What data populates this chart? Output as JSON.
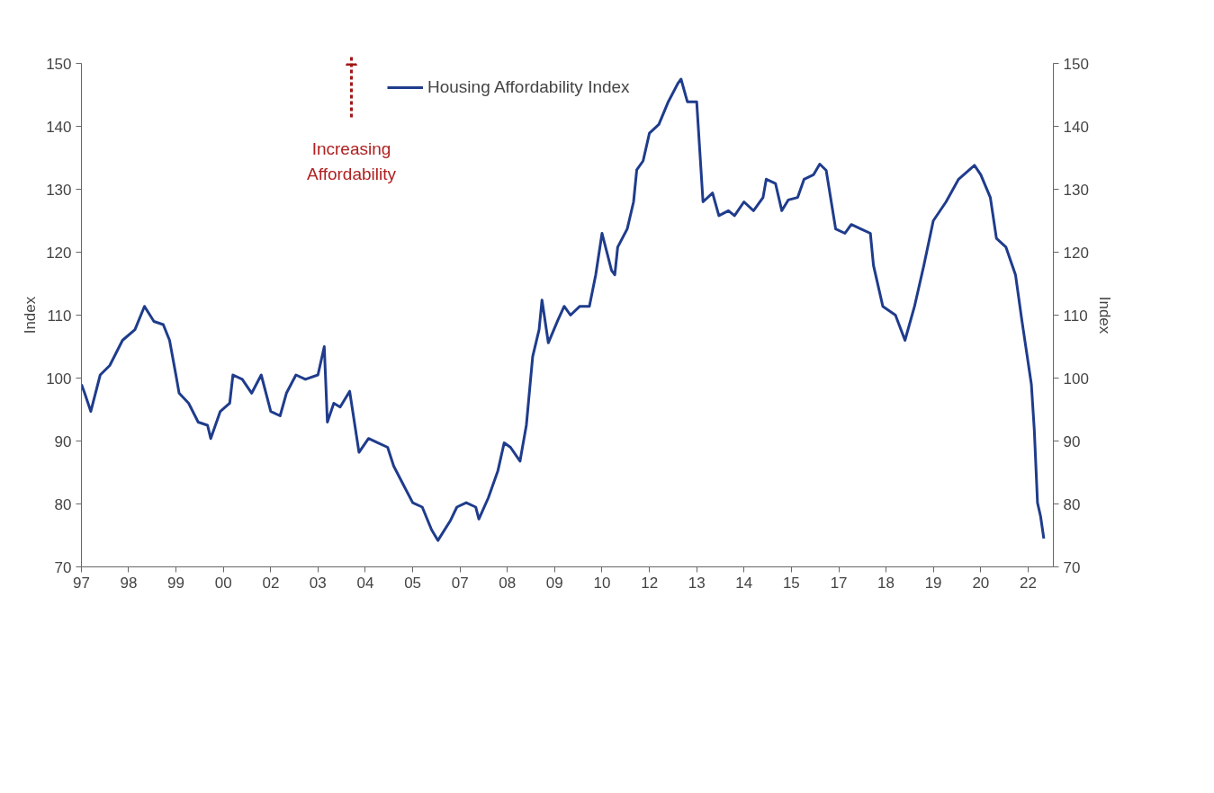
{
  "chart_data": {
    "type": "line",
    "ylabel": "Index",
    "y2label": "Index",
    "annotations": [
      "Increasing Affordability"
    ],
    "xlim": [
      "1997-01",
      "2022-09"
    ],
    "xticks": [
      {
        "value": "1997-01",
        "label": "97"
      },
      {
        "value": "1998-04",
        "label": "98"
      },
      {
        "value": "1999-07",
        "label": "99"
      },
      {
        "value": "2000-10",
        "label": "00"
      },
      {
        "value": "2002-01",
        "label": "02"
      },
      {
        "value": "2003-04",
        "label": "03"
      },
      {
        "value": "2004-07",
        "label": "04"
      },
      {
        "value": "2005-10",
        "label": "05"
      },
      {
        "value": "2007-01",
        "label": "07"
      },
      {
        "value": "2008-04",
        "label": "08"
      },
      {
        "value": "2009-07",
        "label": "09"
      },
      {
        "value": "2010-10",
        "label": "10"
      },
      {
        "value": "2012-01",
        "label": "12"
      },
      {
        "value": "2013-04",
        "label": "13"
      },
      {
        "value": "2014-07",
        "label": "14"
      },
      {
        "value": "2015-10",
        "label": "15"
      },
      {
        "value": "2017-01",
        "label": "17"
      },
      {
        "value": "2018-04",
        "label": "18"
      },
      {
        "value": "2019-07",
        "label": "19"
      },
      {
        "value": "2020-10",
        "label": "20"
      },
      {
        "value": "2022-01",
        "label": "22"
      }
    ],
    "ylim": [
      70,
      150
    ],
    "yticks": [
      70,
      80,
      90,
      100,
      110,
      120,
      130,
      140,
      150
    ],
    "y2lim": [
      70,
      150
    ],
    "y2ticks": [
      70,
      80,
      90,
      100,
      110,
      120,
      130,
      140,
      150
    ],
    "grid": false,
    "legend": "top",
    "line_style": "solid",
    "series": [
      {
        "name": "Housing Affordability Index",
        "color": "#1f3c8c",
        "x": [
          "1997-01",
          "1997-02",
          "1997-04",
          "1997-07",
          "1997-10",
          "1998-02",
          "1998-06",
          "1998-09",
          "1998-12",
          "1999-03",
          "1999-05",
          "1999-07",
          "1999-08",
          "1999-11",
          "2000-02",
          "2000-05",
          "2000-06",
          "2000-09",
          "2000-12",
          "2001-01",
          "2001-04",
          "2001-07",
          "2001-10",
          "2002-01",
          "2002-04",
          "2002-06",
          "2002-09",
          "2002-12",
          "2003-04",
          "2003-06",
          "2003-07",
          "2003-09",
          "2003-11",
          "2004-02",
          "2004-05",
          "2004-08",
          "2004-11",
          "2005-02",
          "2005-04",
          "2005-07",
          "2005-10",
          "2006-01",
          "2006-04",
          "2006-06",
          "2006-10",
          "2006-12",
          "2007-03",
          "2007-06",
          "2007-07",
          "2007-10",
          "2008-01",
          "2008-03",
          "2008-05",
          "2008-08",
          "2008-10",
          "2008-12",
          "2009-02",
          "2009-03",
          "2009-05",
          "2009-08",
          "2009-10",
          "2009-12",
          "2010-03",
          "2010-06",
          "2010-08",
          "2010-10",
          "2011-01",
          "2011-02",
          "2011-03",
          "2011-06",
          "2011-08",
          "2011-09",
          "2011-11",
          "2012-01",
          "2012-04",
          "2012-07",
          "2012-10",
          "2012-11",
          "2013-01",
          "2013-03",
          "2013-04",
          "2013-06",
          "2013-09",
          "2013-11",
          "2014-02",
          "2014-04",
          "2014-07",
          "2014-10",
          "2015-01",
          "2015-02",
          "2015-05",
          "2015-07",
          "2015-09",
          "2015-12",
          "2016-02",
          "2016-05",
          "2016-07",
          "2016-09",
          "2016-12",
          "2017-03",
          "2017-05",
          "2017-08",
          "2017-11",
          "2017-12",
          "2018-03",
          "2018-07",
          "2018-10",
          "2019-01",
          "2019-04",
          "2019-07",
          "2019-11",
          "2020-03",
          "2020-08",
          "2020-10",
          "2021-01",
          "2021-03",
          "2021-06",
          "2021-09",
          "2021-11",
          "2022-02",
          "2022-03",
          "2022-04",
          "2022-05",
          "2022-06"
        ],
        "values": [
          99,
          97.6,
          94.7,
          100.5,
          102,
          106,
          107.7,
          111.4,
          109,
          108.5,
          106,
          100.5,
          97.6,
          96,
          93,
          92.5,
          90.4,
          94.7,
          96,
          100.5,
          99.8,
          97.6,
          100.5,
          94.7,
          94,
          97.6,
          100.5,
          99.8,
          100.5,
          105,
          93,
          96,
          95.4,
          97.9,
          88.2,
          90.4,
          89.7,
          89,
          86,
          83.1,
          80.2,
          79.5,
          75.9,
          74.2,
          77.4,
          79.5,
          80.2,
          79.5,
          77.6,
          81,
          85.3,
          89.7,
          89,
          86.8,
          92.5,
          103.4,
          107.7,
          112.4,
          105.6,
          109.2,
          111.4,
          110,
          111.4,
          111.4,
          116.4,
          123,
          117.1,
          116.4,
          120.8,
          123.7,
          128,
          133.1,
          134.5,
          138.9,
          140.3,
          143.9,
          146.8,
          147.5,
          143.9,
          143.9,
          143.9,
          128,
          129.4,
          125.8,
          126.6,
          125.8,
          128,
          126.6,
          128.7,
          131.6,
          130.9,
          126.6,
          128.3,
          128.7,
          131.6,
          132.3,
          134,
          133,
          123.7,
          123,
          124.4,
          123.7,
          123,
          117.9,
          111.4,
          110,
          106,
          111.4,
          117.9,
          125,
          128,
          131.6,
          133.8,
          132.3,
          128.7,
          122.2,
          120.8,
          116.4,
          109.2,
          99,
          91.8,
          80.2,
          78,
          74.5
        ]
      }
    ]
  }
}
